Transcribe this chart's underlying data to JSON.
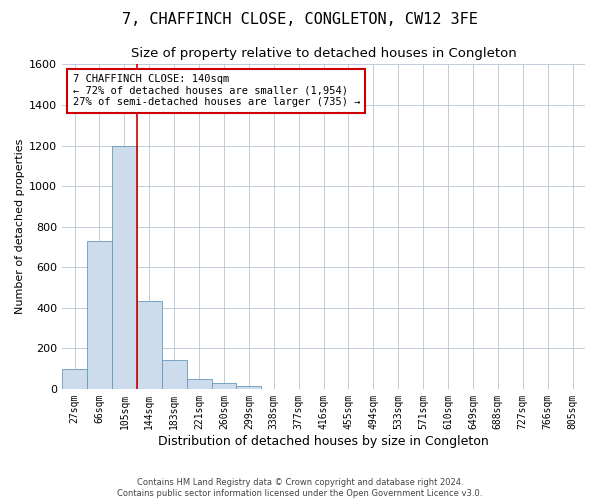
{
  "title": "7, CHAFFINCH CLOSE, CONGLETON, CW12 3FE",
  "subtitle": "Size of property relative to detached houses in Congleton",
  "xlabel": "Distribution of detached houses by size in Congleton",
  "ylabel": "Number of detached properties",
  "footer_line1": "Contains HM Land Registry data © Crown copyright and database right 2024.",
  "footer_line2": "Contains public sector information licensed under the Open Government Licence v3.0.",
  "x_labels": [
    "27sqm",
    "66sqm",
    "105sqm",
    "144sqm",
    "183sqm",
    "221sqm",
    "260sqm",
    "299sqm",
    "338sqm",
    "377sqm",
    "416sqm",
    "455sqm",
    "494sqm",
    "533sqm",
    "571sqm",
    "610sqm",
    "649sqm",
    "688sqm",
    "727sqm",
    "766sqm",
    "805sqm"
  ],
  "bar_values": [
    100,
    730,
    1200,
    435,
    140,
    50,
    30,
    15,
    0,
    0,
    0,
    0,
    0,
    0,
    0,
    0,
    0,
    0,
    0,
    0,
    0
  ],
  "bar_color": "#ccdcec",
  "bar_edgecolor": "#6699bb",
  "ylim": [
    0,
    1600
  ],
  "yticks": [
    0,
    200,
    400,
    600,
    800,
    1000,
    1200,
    1400,
    1600
  ],
  "vline_x_index": 2.5,
  "vline_color": "#cc0000",
  "annotation_line1": "7 CHAFFINCH CLOSE: 140sqm",
  "annotation_line2": "← 72% of detached houses are smaller (1,954)",
  "annotation_line3": "27% of semi-detached houses are larger (735) →",
  "annotation_box_color": "#cc0000",
  "background_color": "#ffffff",
  "grid_color": "#c0ccd8",
  "title_fontsize": 11,
  "subtitle_fontsize": 9.5,
  "tick_fontsize": 7,
  "ylabel_fontsize": 8,
  "xlabel_fontsize": 9
}
